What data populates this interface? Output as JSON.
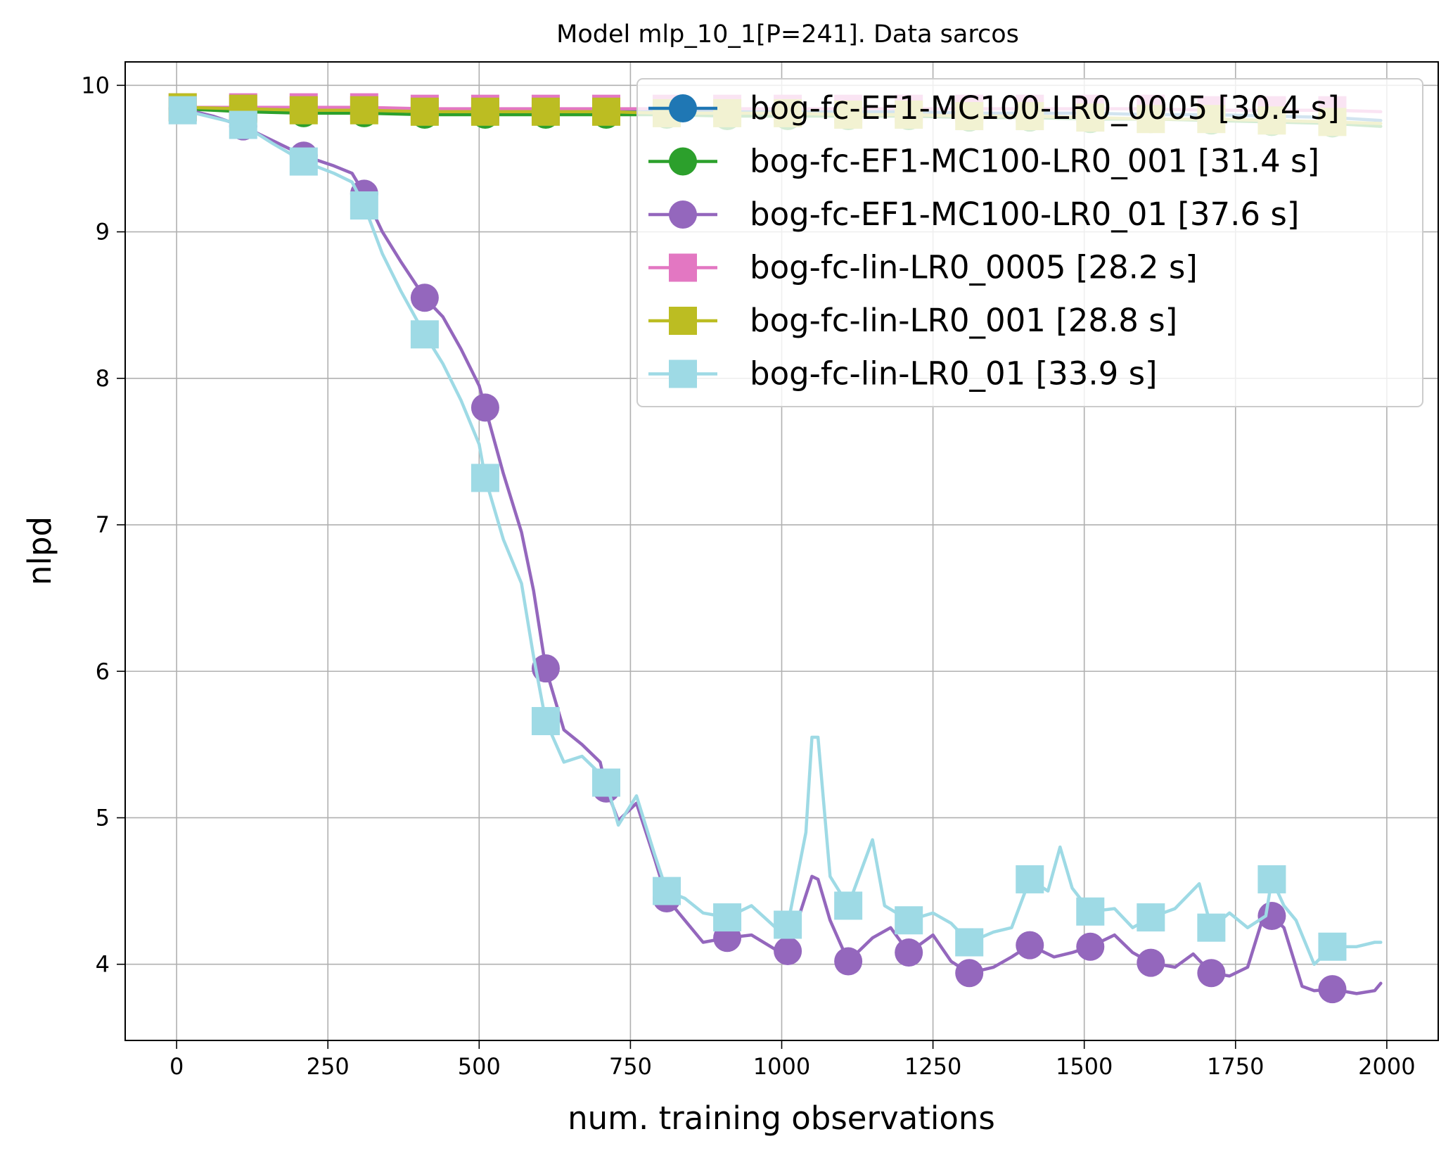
{
  "chart_data": {
    "type": "line",
    "title": "Model mlp_10_1[P=241]. Data sarcos",
    "xlabel": "num. training observations",
    "ylabel": "nlpd",
    "xlim": [
      -85,
      2085
    ],
    "ylim": [
      3.48,
      10.16
    ],
    "xticks": [
      0,
      250,
      500,
      750,
      1000,
      1250,
      1500,
      1750,
      2000
    ],
    "yticks": [
      4,
      5,
      6,
      7,
      8,
      9,
      10
    ],
    "grid": true,
    "legend_position": "top-right",
    "series": [
      {
        "name": "bog-fc-EF1-MC100-LR0_0005 [30.4 s]",
        "color": "#1f77b4",
        "marker": "circle",
        "x": [
          10,
          110,
          210,
          310,
          410,
          510,
          610,
          710,
          810,
          910,
          1010,
          1110,
          1210,
          1310,
          1410,
          1510,
          1610,
          1710,
          1810,
          1910,
          1990
        ],
        "y": [
          9.84,
          9.84,
          9.84,
          9.83,
          9.83,
          9.83,
          9.83,
          9.83,
          9.83,
          9.82,
          9.82,
          9.82,
          9.82,
          9.81,
          9.81,
          9.81,
          9.8,
          9.8,
          9.79,
          9.78,
          9.76
        ]
      },
      {
        "name": "bog-fc-EF1-MC100-LR0_001 [31.4 s]",
        "color": "#2ca02c",
        "marker": "circle",
        "x": [
          10,
          110,
          210,
          310,
          410,
          510,
          610,
          710,
          810,
          910,
          1010,
          1110,
          1210,
          1310,
          1410,
          1510,
          1610,
          1710,
          1810,
          1910,
          1990
        ],
        "y": [
          9.84,
          9.82,
          9.81,
          9.81,
          9.8,
          9.8,
          9.8,
          9.8,
          9.8,
          9.79,
          9.79,
          9.79,
          9.79,
          9.78,
          9.78,
          9.77,
          9.77,
          9.76,
          9.75,
          9.74,
          9.72
        ]
      },
      {
        "name": "bog-fc-EF1-MC100-LR0_01 [37.6 s]",
        "color": "#9467bd",
        "marker": "circle",
        "x": [
          10,
          60,
          110,
          160,
          210,
          260,
          290,
          310,
          340,
          370,
          410,
          440,
          470,
          500,
          510,
          540,
          570,
          590,
          610,
          640,
          670,
          700,
          710,
          730,
          760,
          790,
          810,
          840,
          870,
          910,
          950,
          990,
          1010,
          1050,
          1060,
          1080,
          1110,
          1150,
          1180,
          1210,
          1250,
          1280,
          1310,
          1350,
          1380,
          1410,
          1450,
          1480,
          1510,
          1550,
          1580,
          1610,
          1650,
          1680,
          1710,
          1740,
          1770,
          1800,
          1810,
          1830,
          1860,
          1880,
          1910,
          1950,
          1980,
          1990
        ],
        "y": [
          9.84,
          9.79,
          9.72,
          9.62,
          9.52,
          9.45,
          9.4,
          9.26,
          9.0,
          8.8,
          8.55,
          8.42,
          8.2,
          7.95,
          7.8,
          7.35,
          6.95,
          6.55,
          6.02,
          5.6,
          5.5,
          5.38,
          5.2,
          4.98,
          5.1,
          4.72,
          4.45,
          4.3,
          4.15,
          4.18,
          4.2,
          4.1,
          4.09,
          4.6,
          4.58,
          4.3,
          4.02,
          4.18,
          4.25,
          4.08,
          4.2,
          4.02,
          3.94,
          3.98,
          4.05,
          4.13,
          4.05,
          4.08,
          4.12,
          4.2,
          4.08,
          4.01,
          3.98,
          4.07,
          3.94,
          3.92,
          3.98,
          4.38,
          4.33,
          4.25,
          3.85,
          3.82,
          3.83,
          3.8,
          3.82,
          3.87
        ]
      },
      {
        "name": "bog-fc-lin-LR0_0005 [28.2 s]",
        "color": "#e377c2",
        "marker": "square",
        "x": [
          10,
          110,
          210,
          310,
          410,
          510,
          610,
          710,
          810,
          910,
          1010,
          1110,
          1210,
          1310,
          1410,
          1510,
          1610,
          1710,
          1810,
          1910,
          1990
        ],
        "y": [
          9.85,
          9.85,
          9.85,
          9.85,
          9.84,
          9.84,
          9.84,
          9.84,
          9.84,
          9.84,
          9.84,
          9.84,
          9.84,
          9.84,
          9.84,
          9.84,
          9.84,
          9.83,
          9.83,
          9.83,
          9.82
        ]
      },
      {
        "name": "bog-fc-lin-LR0_001 [28.8 s]",
        "color": "#bcbd22",
        "marker": "square",
        "x": [
          10,
          110,
          210,
          310,
          410,
          510,
          610,
          710,
          810,
          910,
          1010,
          1110,
          1210,
          1310,
          1410,
          1510,
          1610,
          1710,
          1810,
          1910,
          1990
        ],
        "y": [
          9.85,
          9.84,
          9.83,
          9.83,
          9.82,
          9.82,
          9.82,
          9.82,
          9.81,
          9.81,
          9.81,
          9.8,
          9.8,
          9.79,
          9.79,
          9.78,
          9.77,
          9.77,
          9.76,
          9.75,
          9.74
        ]
      },
      {
        "name": "bog-fc-lin-LR0_01 [33.9 s]",
        "color": "#9edae5",
        "marker": "square",
        "x": [
          10,
          60,
          110,
          160,
          210,
          260,
          290,
          310,
          340,
          370,
          410,
          440,
          470,
          500,
          510,
          540,
          570,
          590,
          610,
          640,
          670,
          700,
          710,
          730,
          760,
          790,
          810,
          840,
          870,
          910,
          950,
          990,
          1010,
          1040,
          1050,
          1060,
          1080,
          1110,
          1150,
          1170,
          1210,
          1250,
          1280,
          1310,
          1350,
          1380,
          1410,
          1440,
          1460,
          1480,
          1510,
          1550,
          1580,
          1610,
          1650,
          1690,
          1710,
          1740,
          1770,
          1800,
          1810,
          1830,
          1850,
          1880,
          1910,
          1950,
          1980,
          1990
        ],
        "y": [
          9.83,
          9.78,
          9.73,
          9.6,
          9.48,
          9.4,
          9.34,
          9.18,
          8.85,
          8.6,
          8.3,
          8.1,
          7.85,
          7.55,
          7.32,
          6.9,
          6.6,
          6.1,
          5.66,
          5.38,
          5.42,
          5.3,
          5.24,
          4.95,
          5.15,
          4.75,
          4.5,
          4.45,
          4.35,
          4.32,
          4.4,
          4.25,
          4.27,
          4.9,
          5.55,
          5.55,
          4.6,
          4.4,
          4.85,
          4.4,
          4.3,
          4.35,
          4.28,
          4.15,
          4.22,
          4.25,
          4.58,
          4.5,
          4.8,
          4.52,
          4.36,
          4.38,
          4.25,
          4.32,
          4.38,
          4.55,
          4.25,
          4.35,
          4.25,
          4.33,
          4.58,
          4.4,
          4.3,
          4.0,
          4.12,
          4.12,
          4.15,
          4.15
        ]
      }
    ]
  }
}
